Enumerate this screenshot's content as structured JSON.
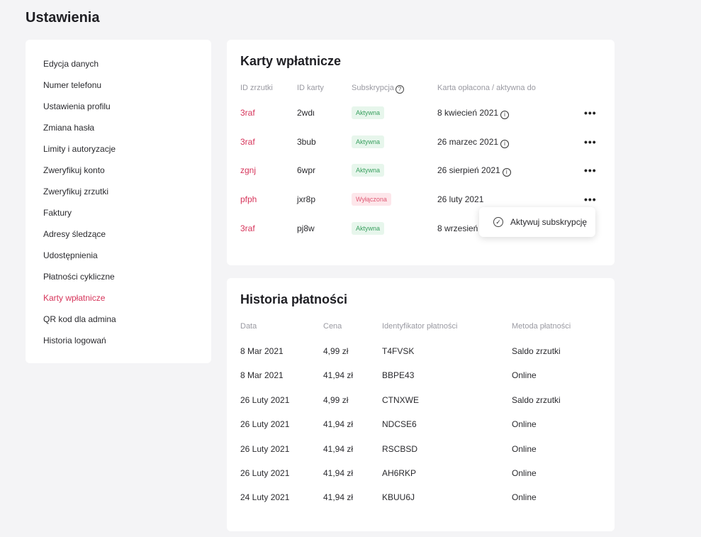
{
  "page": {
    "title": "Ustawienia"
  },
  "sidebar": {
    "items": [
      {
        "label": "Edycja danych"
      },
      {
        "label": "Numer telefonu"
      },
      {
        "label": "Ustawienia profilu"
      },
      {
        "label": "Zmiana hasła"
      },
      {
        "label": "Limity i autoryzacje"
      },
      {
        "label": "Zweryfikuj konto"
      },
      {
        "label": "Zweryfikuj zrzutki"
      },
      {
        "label": "Faktury"
      },
      {
        "label": "Adresy śledzące"
      },
      {
        "label": "Udostępnienia"
      },
      {
        "label": "Płatności cykliczne"
      },
      {
        "label": "Karty wpłatnicze",
        "active": true
      },
      {
        "label": "QR kod dla admina"
      },
      {
        "label": "Historia logowań"
      }
    ]
  },
  "cards": {
    "title": "Karty wpłatnicze",
    "headers": {
      "id_zrzutki": "ID zrzutki",
      "id_karty": "ID karty",
      "subskrypcja": "Subskrypcja",
      "oplacona": "Karta opłacona / aktywna do"
    },
    "rows": [
      {
        "id_zrzutki": "3raf",
        "id_karty": "2wdι",
        "status": "Aktywna",
        "date": "8 kwiecień 2021"
      },
      {
        "id_zrzutki": "3raf",
        "id_karty": "3bub",
        "status": "Aktywna",
        "date": "26 marzec 2021"
      },
      {
        "id_zrzutki": "zgnj",
        "id_karty": "6wpr",
        "status": "Aktywna",
        "date": "26 sierpień 2021"
      },
      {
        "id_zrzutki": "pfph",
        "id_karty": "jxr8p",
        "status": "Wyłączona",
        "date": "26 luty 2021"
      },
      {
        "id_zrzutki": "3raf",
        "id_karty": "pj8w",
        "status": "Aktywna",
        "date": "8 wrzesień"
      }
    ],
    "popup": {
      "label": "Aktywuj subskrypcję"
    }
  },
  "history": {
    "title": "Historia płatności",
    "headers": {
      "data": "Data",
      "cena": "Cena",
      "identyfikator": "Identyfikator płatności",
      "metoda": "Metoda płatności"
    },
    "rows": [
      {
        "data": "8 Mar 2021",
        "cena": "4,99 zł",
        "id": "T4FVSK",
        "metoda": "Saldo zrzutki"
      },
      {
        "data": "8 Mar 2021",
        "cena": "41,94 zł",
        "id": "BBPE43",
        "metoda": "Online"
      },
      {
        "data": "26 Luty 2021",
        "cena": "4,99 zł",
        "id": "CTNXWE",
        "metoda": "Saldo zrzutki"
      },
      {
        "data": "26 Luty 2021",
        "cena": "41,94 zł",
        "id": "NDCSE6",
        "metoda": "Online"
      },
      {
        "data": "26 Luty 2021",
        "cena": "41,94 zł",
        "id": "RSCBSD",
        "metoda": "Online"
      },
      {
        "data": "26 Luty 2021",
        "cena": "41,94 zł",
        "id": "AH6RKP",
        "metoda": "Online"
      },
      {
        "data": "24 Luty 2021",
        "cena": "41,94 zł",
        "id": "KBUU6J",
        "metoda": "Online"
      }
    ]
  },
  "icons": {
    "info": "info-icon",
    "question": "question-icon",
    "more": "more-dots-icon",
    "check": "check-circle-icon"
  },
  "colors": {
    "accent": "#d6345a",
    "active_badge_bg": "#e7f6ec",
    "active_badge_text": "#3aa060",
    "off_badge_bg": "#fde6ea",
    "off_badge_text": "#e05a75"
  }
}
